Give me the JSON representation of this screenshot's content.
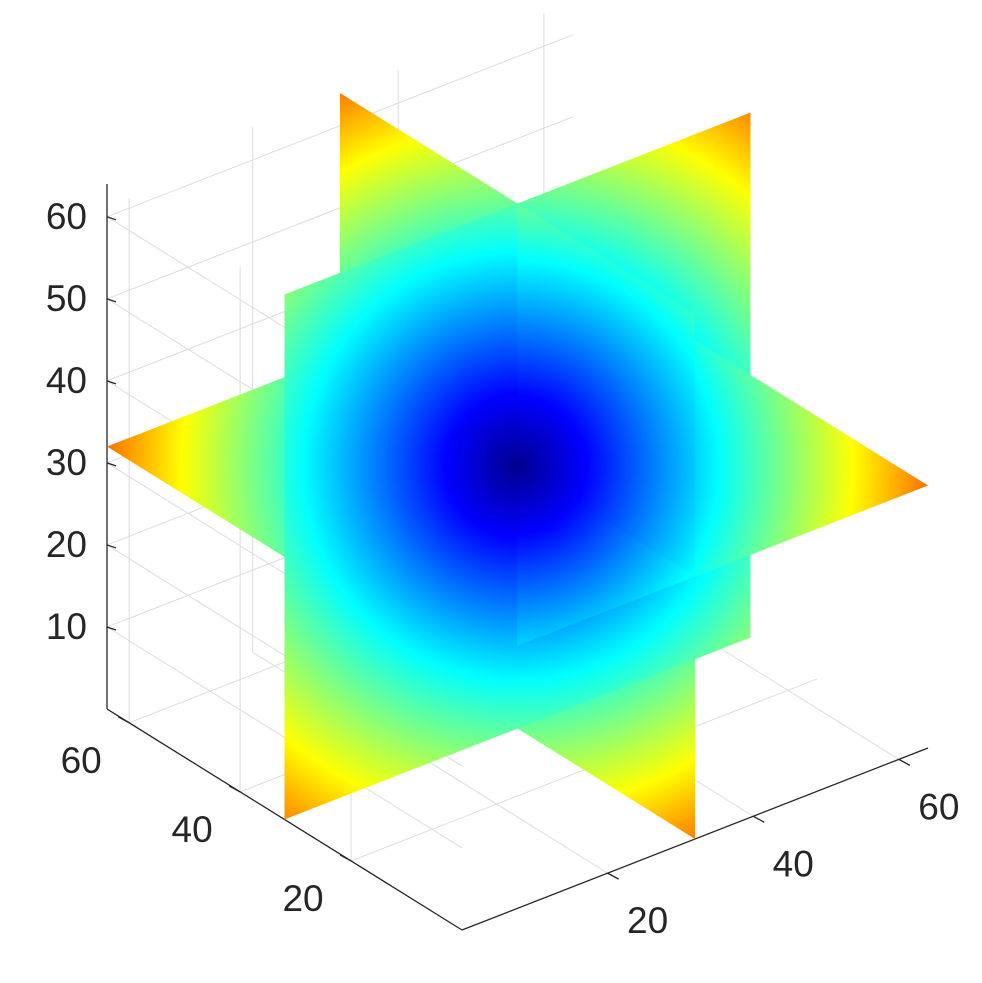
{
  "chart_data": {
    "type": "slice-3d",
    "title": "",
    "xlabel": "",
    "ylabel": "",
    "zlabel": "",
    "colormap": "jet",
    "colormap_stops": [
      "#00008f",
      "#0000ff",
      "#0080ff",
      "#00ffff",
      "#80ff80",
      "#ffff00",
      "#ff8000",
      "#ff0000"
    ],
    "grid": true,
    "box": false,
    "view": "3d-oblique",
    "xlim": [
      0,
      64
    ],
    "ylim": [
      0,
      64
    ],
    "zlim": [
      0,
      64
    ],
    "x_ticks": [
      20,
      40,
      60
    ],
    "y_ticks": [
      20,
      40,
      60
    ],
    "z_ticks": [
      10,
      20,
      30,
      40,
      50,
      60
    ],
    "slices": [
      {
        "plane": "x",
        "value": 32
      },
      {
        "plane": "y",
        "value": 32
      },
      {
        "plane": "z",
        "value": 32
      }
    ],
    "color_min_location": [
      32,
      32,
      32
    ]
  }
}
